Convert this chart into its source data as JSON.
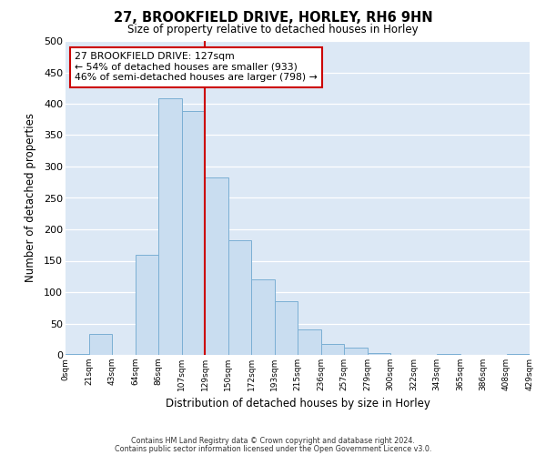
{
  "title": "27, BROOKFIELD DRIVE, HORLEY, RH6 9HN",
  "subtitle": "Size of property relative to detached houses in Horley",
  "xlabel": "Distribution of detached houses by size in Horley",
  "ylabel": "Number of detached properties",
  "bin_labels": [
    "0sqm",
    "21sqm",
    "43sqm",
    "64sqm",
    "86sqm",
    "107sqm",
    "129sqm",
    "150sqm",
    "172sqm",
    "193sqm",
    "215sqm",
    "236sqm",
    "257sqm",
    "279sqm",
    "300sqm",
    "322sqm",
    "343sqm",
    "365sqm",
    "386sqm",
    "408sqm",
    "429sqm"
  ],
  "bar_heights": [
    2,
    33,
    0,
    160,
    408,
    388,
    283,
    183,
    120,
    85,
    40,
    18,
    11,
    3,
    0,
    0,
    2,
    0,
    0,
    2
  ],
  "bar_color": "#c9ddf0",
  "bar_edge_color": "#7bafd4",
  "vline_color": "#cc0000",
  "vline_x": 6,
  "annotation_title": "27 BROOKFIELD DRIVE: 127sqm",
  "annotation_line1": "← 54% of detached houses are smaller (933)",
  "annotation_line2": "46% of semi-detached houses are larger (798) →",
  "annotation_box_color": "#ffffff",
  "annotation_box_edge": "#cc0000",
  "ylim": [
    0,
    500
  ],
  "yticks": [
    0,
    50,
    100,
    150,
    200,
    250,
    300,
    350,
    400,
    450,
    500
  ],
  "fig_bg_color": "#ffffff",
  "plot_bg_color": "#dce8f5",
  "grid_color": "#ffffff",
  "footer_line1": "Contains HM Land Registry data © Crown copyright and database right 2024.",
  "footer_line2": "Contains public sector information licensed under the Open Government Licence v3.0."
}
